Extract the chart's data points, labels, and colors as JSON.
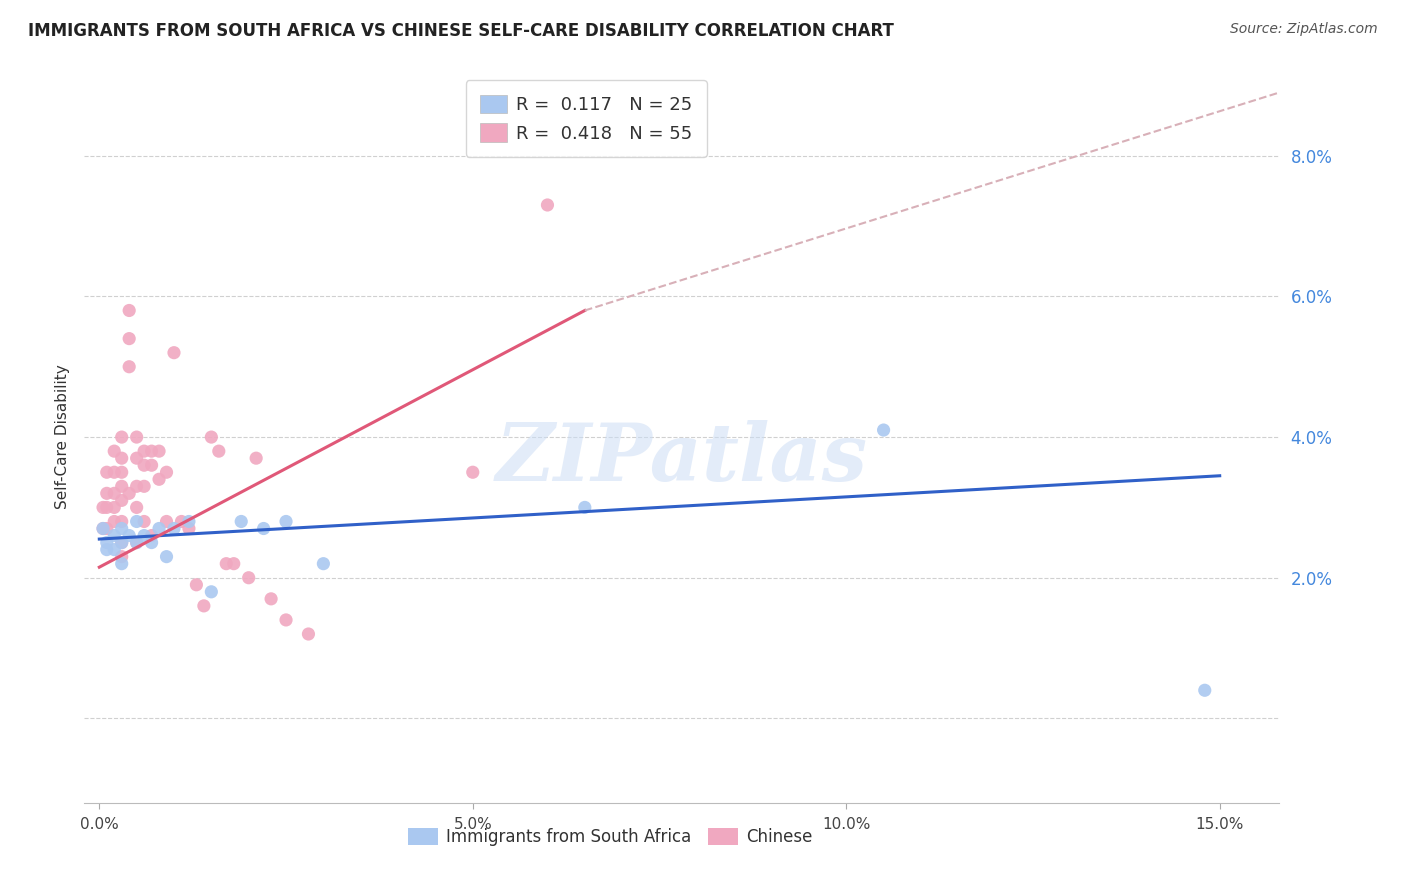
{
  "title": "IMMIGRANTS FROM SOUTH AFRICA VS CHINESE SELF-CARE DISABILITY CORRELATION CHART",
  "source": "Source: ZipAtlas.com",
  "ylabel": "Self-Care Disability",
  "xlim": [
    -0.002,
    0.158
  ],
  "ylim": [
    -0.012,
    0.092
  ],
  "ytick_vals": [
    0.0,
    0.02,
    0.04,
    0.06,
    0.08
  ],
  "ytick_labels": [
    "",
    "2.0%",
    "4.0%",
    "6.0%",
    "8.0%"
  ],
  "xtick_vals": [
    0.0,
    0.05,
    0.1,
    0.15
  ],
  "xtick_labels": [
    "0.0%",
    "5.0%",
    "10.0%",
    "15.0%"
  ],
  "blue_scatter_x": [
    0.0005,
    0.001,
    0.001,
    0.002,
    0.002,
    0.003,
    0.003,
    0.003,
    0.004,
    0.005,
    0.005,
    0.006,
    0.007,
    0.008,
    0.009,
    0.01,
    0.012,
    0.015,
    0.019,
    0.022,
    0.025,
    0.03,
    0.065,
    0.105,
    0.148
  ],
  "blue_scatter_y": [
    0.027,
    0.025,
    0.024,
    0.026,
    0.024,
    0.027,
    0.025,
    0.022,
    0.026,
    0.028,
    0.025,
    0.026,
    0.025,
    0.027,
    0.023,
    0.027,
    0.028,
    0.018,
    0.028,
    0.027,
    0.028,
    0.022,
    0.03,
    0.041,
    0.004
  ],
  "pink_scatter_x": [
    0.0005,
    0.0005,
    0.001,
    0.001,
    0.001,
    0.001,
    0.002,
    0.002,
    0.002,
    0.002,
    0.002,
    0.003,
    0.003,
    0.003,
    0.003,
    0.003,
    0.003,
    0.003,
    0.003,
    0.004,
    0.004,
    0.004,
    0.004,
    0.005,
    0.005,
    0.005,
    0.005,
    0.005,
    0.006,
    0.006,
    0.006,
    0.006,
    0.007,
    0.007,
    0.007,
    0.008,
    0.008,
    0.009,
    0.009,
    0.01,
    0.011,
    0.012,
    0.013,
    0.014,
    0.015,
    0.016,
    0.017,
    0.018,
    0.02,
    0.021,
    0.023,
    0.025,
    0.028,
    0.05,
    0.06
  ],
  "pink_scatter_y": [
    0.03,
    0.027,
    0.035,
    0.032,
    0.03,
    0.027,
    0.038,
    0.035,
    0.032,
    0.03,
    0.028,
    0.04,
    0.037,
    0.035,
    0.033,
    0.031,
    0.028,
    0.025,
    0.023,
    0.058,
    0.054,
    0.05,
    0.032,
    0.04,
    0.037,
    0.033,
    0.03,
    0.025,
    0.038,
    0.036,
    0.033,
    0.028,
    0.038,
    0.036,
    0.026,
    0.038,
    0.034,
    0.035,
    0.028,
    0.052,
    0.028,
    0.027,
    0.019,
    0.016,
    0.04,
    0.038,
    0.022,
    0.022,
    0.02,
    0.037,
    0.017,
    0.014,
    0.012,
    0.035,
    0.073
  ],
  "blue_line_x": [
    0.0,
    0.15
  ],
  "blue_line_y": [
    0.0255,
    0.0345
  ],
  "pink_line_x": [
    0.0,
    0.065
  ],
  "pink_line_y": [
    0.0215,
    0.058
  ],
  "dashed_line_x": [
    0.065,
    0.158
  ],
  "dashed_line_y": [
    0.058,
    0.089
  ],
  "scatter_size": 90,
  "blue_color": "#aac8f0",
  "pink_color": "#f0a8c0",
  "blue_line_color": "#3060c8",
  "pink_line_color": "#e05878",
  "dashed_color": "#d8b0b8",
  "watermark_text": "ZIPatlas",
  "background_color": "#ffffff",
  "grid_color": "#d0d0d0",
  "legend_r1": "R =  0.117   N = 25",
  "legend_r2": "R =  0.418   N = 55",
  "legend_blue_r": "0.117",
  "legend_blue_n": "25",
  "legend_pink_r": "0.418",
  "legend_pink_n": "55",
  "bottom_label1": "Immigrants from South Africa",
  "bottom_label2": "Chinese"
}
